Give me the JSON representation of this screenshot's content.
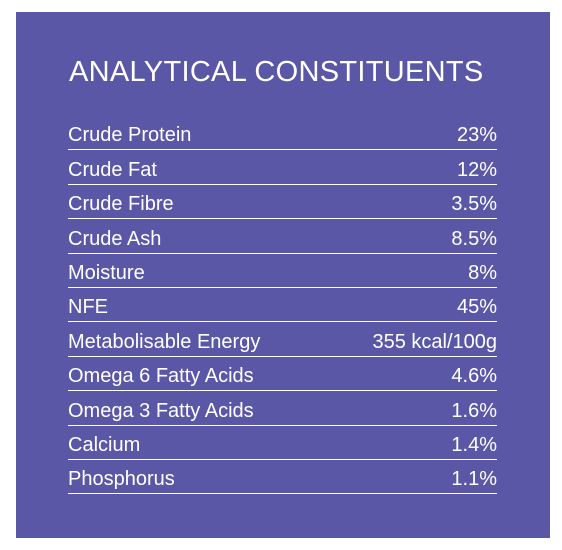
{
  "title": "ANALYTICAL CONSTITUENTS",
  "rows": [
    {
      "label": "Crude Protein",
      "value": "23%"
    },
    {
      "label": "Crude Fat",
      "value": "12%"
    },
    {
      "label": "Crude Fibre",
      "value": "3.5%"
    },
    {
      "label": "Crude Ash",
      "value": "8.5%"
    },
    {
      "label": "Moisture",
      "value": "8%"
    },
    {
      "label": "NFE",
      "value": "45%"
    },
    {
      "label": "Metabolisable Energy",
      "value": "355 kcal/100g"
    },
    {
      "label": "Omega 6 Fatty Acids",
      "value": "4.6%"
    },
    {
      "label": "Omega 3 Fatty Acids",
      "value": "1.6%"
    },
    {
      "label": "Calcium",
      "value": "1.4%"
    },
    {
      "label": "Phosphorus",
      "value": "1.1%"
    }
  ],
  "colors": {
    "panel_background": "#5a58a6",
    "text": "#ffffff"
  }
}
